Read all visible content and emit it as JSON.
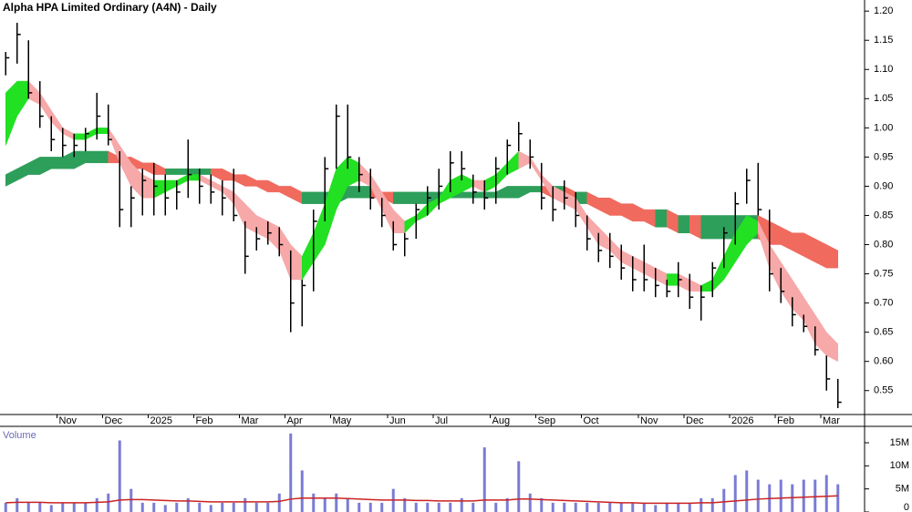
{
  "chart_data": {
    "type": "ohlc",
    "title": "Alpha HPA Limited Ordinary (A4N) - Daily",
    "color": "#000000",
    "categories": [
      null,
      null,
      null,
      null,
      null,
      "Nov",
      null,
      null,
      null,
      "Dec",
      null,
      null,
      null,
      "2025",
      null,
      null,
      null,
      "Feb",
      null,
      null,
      null,
      "Mar",
      null,
      null,
      null,
      "Apr",
      null,
      null,
      null,
      "May",
      null,
      null,
      null,
      null,
      "Jun",
      null,
      null,
      null,
      "Jul",
      null,
      null,
      null,
      null,
      "Aug",
      null,
      null,
      null,
      "Sep",
      null,
      null,
      null,
      "Oct",
      null,
      null,
      null,
      null,
      "Nov",
      null,
      null,
      null,
      "Dec",
      null,
      null,
      null,
      "2026",
      null,
      null,
      null,
      "Feb",
      null,
      null,
      null,
      "Mar",
      null
    ],
    "high": [
      1.13,
      1.18,
      1.15,
      1.08,
      1.02,
      1.0,
      0.99,
      1.0,
      1.06,
      1.04,
      0.96,
      0.9,
      0.93,
      0.94,
      0.92,
      0.91,
      0.98,
      0.93,
      0.92,
      0.91,
      0.93,
      0.84,
      0.83,
      0.84,
      0.83,
      0.79,
      0.74,
      0.86,
      0.95,
      1.04,
      1.04,
      0.95,
      0.93,
      0.88,
      0.84,
      0.82,
      0.87,
      0.9,
      0.93,
      0.96,
      0.96,
      0.92,
      0.91,
      0.95,
      0.98,
      1.01,
      0.98,
      0.94,
      0.9,
      0.91,
      0.89,
      0.85,
      0.82,
      0.82,
      0.8,
      0.78,
      0.8,
      0.76,
      0.74,
      0.77,
      0.75,
      0.73,
      0.77,
      0.83,
      0.89,
      0.93,
      0.94,
      0.86,
      0.76,
      0.71,
      0.68,
      0.66,
      0.61,
      0.57
    ],
    "low": [
      1.09,
      1.11,
      1.05,
      1.0,
      0.96,
      0.95,
      0.95,
      0.96,
      0.98,
      0.97,
      0.83,
      0.83,
      0.85,
      0.85,
      0.85,
      0.86,
      0.88,
      0.87,
      0.87,
      0.85,
      0.84,
      0.75,
      0.79,
      0.8,
      0.78,
      0.65,
      0.66,
      0.72,
      0.84,
      0.93,
      0.93,
      0.89,
      0.86,
      0.83,
      0.79,
      0.78,
      0.81,
      0.85,
      0.86,
      0.89,
      0.91,
      0.87,
      0.86,
      0.87,
      0.92,
      0.96,
      0.93,
      0.86,
      0.84,
      0.86,
      0.83,
      0.79,
      0.77,
      0.76,
      0.74,
      0.72,
      0.72,
      0.71,
      0.71,
      0.71,
      0.69,
      0.67,
      0.71,
      0.76,
      0.8,
      0.87,
      0.85,
      0.72,
      0.7,
      0.66,
      0.65,
      0.61,
      0.55,
      0.52
    ],
    "close": [
      1.12,
      1.16,
      1.06,
      1.02,
      0.98,
      0.97,
      0.97,
      0.99,
      1.02,
      0.98,
      0.86,
      0.88,
      0.91,
      0.9,
      0.88,
      0.89,
      0.92,
      0.9,
      0.89,
      0.88,
      0.85,
      0.78,
      0.81,
      0.82,
      0.8,
      0.7,
      0.73,
      0.84,
      0.93,
      1.02,
      0.95,
      0.92,
      0.88,
      0.85,
      0.8,
      0.81,
      0.86,
      0.88,
      0.9,
      0.94,
      0.93,
      0.89,
      0.88,
      0.93,
      0.97,
      0.99,
      0.95,
      0.88,
      0.86,
      0.88,
      0.85,
      0.81,
      0.79,
      0.78,
      0.76,
      0.74,
      0.74,
      0.73,
      0.72,
      0.74,
      0.71,
      0.71,
      0.76,
      0.82,
      0.87,
      0.91,
      0.86,
      0.75,
      0.72,
      0.68,
      0.66,
      0.62,
      0.57,
      0.53
    ],
    "short_ribbon": {
      "rising_color": "#22e022",
      "falling_color": "#f7a8a8",
      "upper": [
        1.06,
        1.08,
        1.08,
        1.06,
        1.03,
        1.0,
        0.99,
        0.99,
        1.0,
        1.0,
        0.97,
        0.94,
        0.92,
        0.91,
        0.91,
        0.91,
        0.92,
        0.92,
        0.91,
        0.9,
        0.89,
        0.87,
        0.85,
        0.84,
        0.83,
        0.8,
        0.78,
        0.82,
        0.87,
        0.93,
        0.95,
        0.94,
        0.92,
        0.89,
        0.86,
        0.84,
        0.85,
        0.87,
        0.88,
        0.91,
        0.92,
        0.91,
        0.91,
        0.92,
        0.94,
        0.96,
        0.95,
        0.92,
        0.9,
        0.89,
        0.88,
        0.85,
        0.83,
        0.81,
        0.79,
        0.78,
        0.77,
        0.76,
        0.75,
        0.75,
        0.74,
        0.73,
        0.74,
        0.78,
        0.82,
        0.85,
        0.84,
        0.8,
        0.77,
        0.74,
        0.71,
        0.68,
        0.65,
        0.63
      ],
      "lower": [
        0.97,
        1.02,
        1.05,
        1.04,
        1.01,
        0.99,
        0.98,
        0.98,
        0.99,
        0.99,
        0.94,
        0.9,
        0.88,
        0.88,
        0.89,
        0.9,
        0.91,
        0.91,
        0.9,
        0.89,
        0.87,
        0.83,
        0.82,
        0.81,
        0.79,
        0.74,
        0.74,
        0.77,
        0.8,
        0.86,
        0.9,
        0.91,
        0.9,
        0.86,
        0.82,
        0.82,
        0.84,
        0.85,
        0.87,
        0.88,
        0.89,
        0.9,
        0.89,
        0.9,
        0.92,
        0.93,
        0.94,
        0.91,
        0.88,
        0.87,
        0.86,
        0.83,
        0.8,
        0.79,
        0.77,
        0.76,
        0.75,
        0.74,
        0.73,
        0.73,
        0.72,
        0.72,
        0.72,
        0.74,
        0.77,
        0.8,
        0.82,
        0.76,
        0.72,
        0.69,
        0.67,
        0.63,
        0.61,
        0.6
      ]
    },
    "long_ribbon": {
      "rising_color": "#2e9e5b",
      "falling_color": "#f06a5e",
      "upper": [
        0.92,
        0.93,
        0.94,
        0.95,
        0.95,
        0.95,
        0.96,
        0.96,
        0.96,
        0.96,
        0.95,
        0.95,
        0.94,
        0.94,
        0.93,
        0.93,
        0.93,
        0.93,
        0.93,
        0.93,
        0.92,
        0.92,
        0.91,
        0.91,
        0.9,
        0.9,
        0.89,
        0.89,
        0.89,
        0.89,
        0.9,
        0.9,
        0.9,
        0.89,
        0.89,
        0.89,
        0.89,
        0.89,
        0.89,
        0.89,
        0.89,
        0.89,
        0.89,
        0.89,
        0.9,
        0.9,
        0.9,
        0.9,
        0.9,
        0.9,
        0.89,
        0.89,
        0.88,
        0.88,
        0.87,
        0.87,
        0.86,
        0.86,
        0.86,
        0.85,
        0.85,
        0.85,
        0.85,
        0.85,
        0.85,
        0.85,
        0.85,
        0.84,
        0.83,
        0.82,
        0.82,
        0.81,
        0.8,
        0.79
      ],
      "lower": [
        0.9,
        0.91,
        0.92,
        0.92,
        0.93,
        0.93,
        0.93,
        0.94,
        0.94,
        0.94,
        0.94,
        0.93,
        0.93,
        0.92,
        0.92,
        0.92,
        0.92,
        0.92,
        0.92,
        0.91,
        0.91,
        0.9,
        0.9,
        0.89,
        0.89,
        0.88,
        0.87,
        0.87,
        0.87,
        0.87,
        0.88,
        0.88,
        0.88,
        0.88,
        0.87,
        0.87,
        0.87,
        0.87,
        0.88,
        0.88,
        0.88,
        0.88,
        0.88,
        0.88,
        0.88,
        0.88,
        0.89,
        0.89,
        0.88,
        0.88,
        0.87,
        0.87,
        0.86,
        0.85,
        0.85,
        0.84,
        0.84,
        0.83,
        0.83,
        0.82,
        0.82,
        0.81,
        0.81,
        0.81,
        0.81,
        0.81,
        0.81,
        0.8,
        0.8,
        0.79,
        0.78,
        0.77,
        0.76,
        0.76
      ]
    },
    "ylim": [
      0.509,
      1.219
    ],
    "yticks": [
      {
        "value": 1.2,
        "label": "1.20"
      },
      1.15,
      {
        "value": 1.1,
        "label": "1.10"
      },
      1.05,
      {
        "value": 1.0,
        "label": "1.00"
      },
      0.95,
      {
        "value": 0.9,
        "label": "0.90"
      },
      0.85,
      {
        "value": 0.8,
        "label": "0.80"
      },
      0.75,
      {
        "value": 0.7,
        "label": "0.70"
      },
      0.65,
      {
        "value": 0.6,
        "label": "0.60"
      },
      0.55
    ],
    "volume": {
      "label": "Volume",
      "color": "#7b7bd6",
      "average_color": "#cc2222",
      "values": [
        2000000,
        3000000,
        2000000,
        2000000,
        1500000,
        2000000,
        2000000,
        2000000,
        3000000,
        4000000,
        15500000,
        5000000,
        2000000,
        2000000,
        1500000,
        2000000,
        3000000,
        2000000,
        1500000,
        2000000,
        2000000,
        3000000,
        2000000,
        2000000,
        4000000,
        17000000,
        9000000,
        4000000,
        3000000,
        4000000,
        3000000,
        2000000,
        2000000,
        2000000,
        5000000,
        3000000,
        2000000,
        2000000,
        2000000,
        2000000,
        3000000,
        2000000,
        14000000,
        2000000,
        3000000,
        11000000,
        4000000,
        3000000,
        2000000,
        2000000,
        2000000,
        2000000,
        2000000,
        2000000,
        2000000,
        2000000,
        2000000,
        1500000,
        2000000,
        2000000,
        2000000,
        3000000,
        3000000,
        5000000,
        8000000,
        9000000,
        7000000,
        6000000,
        7000000,
        6000000,
        7000000,
        7000000,
        8000000,
        6000000
      ],
      "average": [
        2000000,
        2100000,
        2100000,
        2100000,
        2000000,
        2000000,
        2000000,
        2000000,
        2100000,
        2200000,
        2600000,
        2700000,
        2700000,
        2600000,
        2500000,
        2400000,
        2400000,
        2300000,
        2200000,
        2200000,
        2200000,
        2200000,
        2200000,
        2200000,
        2300000,
        2800000,
        3000000,
        3000000,
        3000000,
        3000000,
        2900000,
        2800000,
        2700000,
        2600000,
        2600000,
        2600000,
        2500000,
        2500000,
        2400000,
        2400000,
        2400000,
        2400000,
        2600000,
        2600000,
        2600000,
        2800000,
        2800000,
        2700000,
        2600000,
        2500000,
        2400000,
        2300000,
        2200000,
        2100000,
        2000000,
        2000000,
        1900000,
        1900000,
        1900000,
        1900000,
        1900000,
        2000000,
        2000000,
        2200000,
        2400000,
        2600000,
        2800000,
        2900000,
        3000000,
        3100000,
        3200000,
        3300000,
        3400000,
        3500000
      ],
      "ylim": [
        0,
        18550000
      ],
      "yticks": [
        0,
        {
          "value": 5000000,
          "label": "5M"
        },
        {
          "value": 10000000,
          "label": "10M"
        },
        {
          "value": 15000000,
          "label": "15M"
        }
      ]
    }
  }
}
